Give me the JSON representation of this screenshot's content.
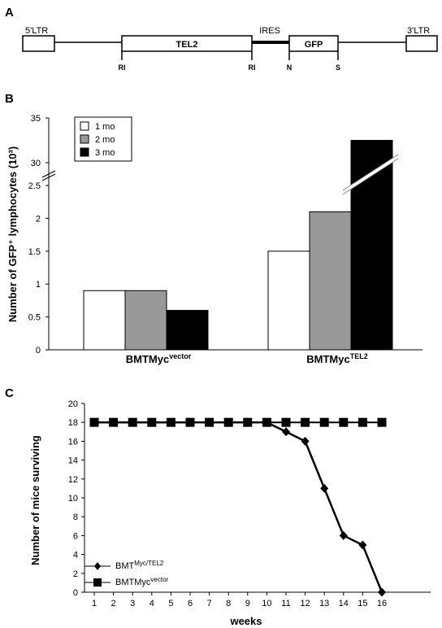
{
  "panels": {
    "a": "A",
    "b": "B",
    "c": "C"
  },
  "construct": {
    "ltr5": "5'LTR",
    "tel2": "TEL2",
    "ires": "IRES",
    "gfp": "GFP",
    "ltr3": "3'LTR",
    "sites": [
      "RI",
      "RI",
      "N",
      "S"
    ]
  },
  "chart_data": [
    {
      "type": "bar",
      "ylabel": "Number of GFP⁺ lymphocytes (10³)",
      "categories": [
        {
          "base": "BMTMyc",
          "sup": "vector"
        },
        {
          "base": "BMTMyc",
          "sup": "TEL2"
        }
      ],
      "series": [
        {
          "name": "1 mo",
          "color": "#ffffff",
          "values": [
            0.9,
            1.5
          ]
        },
        {
          "name": "2 mo",
          "color": "#999999",
          "values": [
            0.9,
            2.1
          ]
        },
        {
          "name": "3 mo",
          "color": "#000000",
          "values": [
            0.6,
            32.5
          ]
        }
      ],
      "y_axis_broken": true,
      "lower_range": [
        0,
        2.5
      ],
      "upper_range": [
        30,
        35
      ],
      "lower_ticks": [
        "0",
        "0.5",
        "1",
        "1.5",
        "2",
        "2.5"
      ],
      "upper_ticks": [
        "30",
        "35"
      ],
      "legend_position": "top-left",
      "grid": false
    },
    {
      "type": "line",
      "xlabel": "weeks",
      "ylabel": "Number of mice surviving",
      "x": [
        1,
        2,
        3,
        4,
        5,
        6,
        7,
        8,
        9,
        10,
        11,
        12,
        13,
        14,
        15,
        16
      ],
      "ylim": [
        0,
        20
      ],
      "y_ticks": [
        "0",
        "2",
        "4",
        "6",
        "8",
        "10",
        "12",
        "14",
        "16",
        "18",
        "20"
      ],
      "series": [
        {
          "label_base": "BMT",
          "label_sup": "Myc/TEL2",
          "marker": "diamond",
          "values": [
            18,
            18,
            18,
            18,
            18,
            18,
            18,
            18,
            18,
            18,
            17,
            16,
            11,
            6,
            5,
            0
          ]
        },
        {
          "label_base": "BMTMyc",
          "label_sup": "vector",
          "marker": "square",
          "values": [
            18,
            18,
            18,
            18,
            18,
            18,
            18,
            18,
            18,
            18,
            18,
            18,
            18,
            18,
            18,
            18
          ]
        }
      ],
      "legend_position": "bottom-left",
      "grid": false
    }
  ]
}
